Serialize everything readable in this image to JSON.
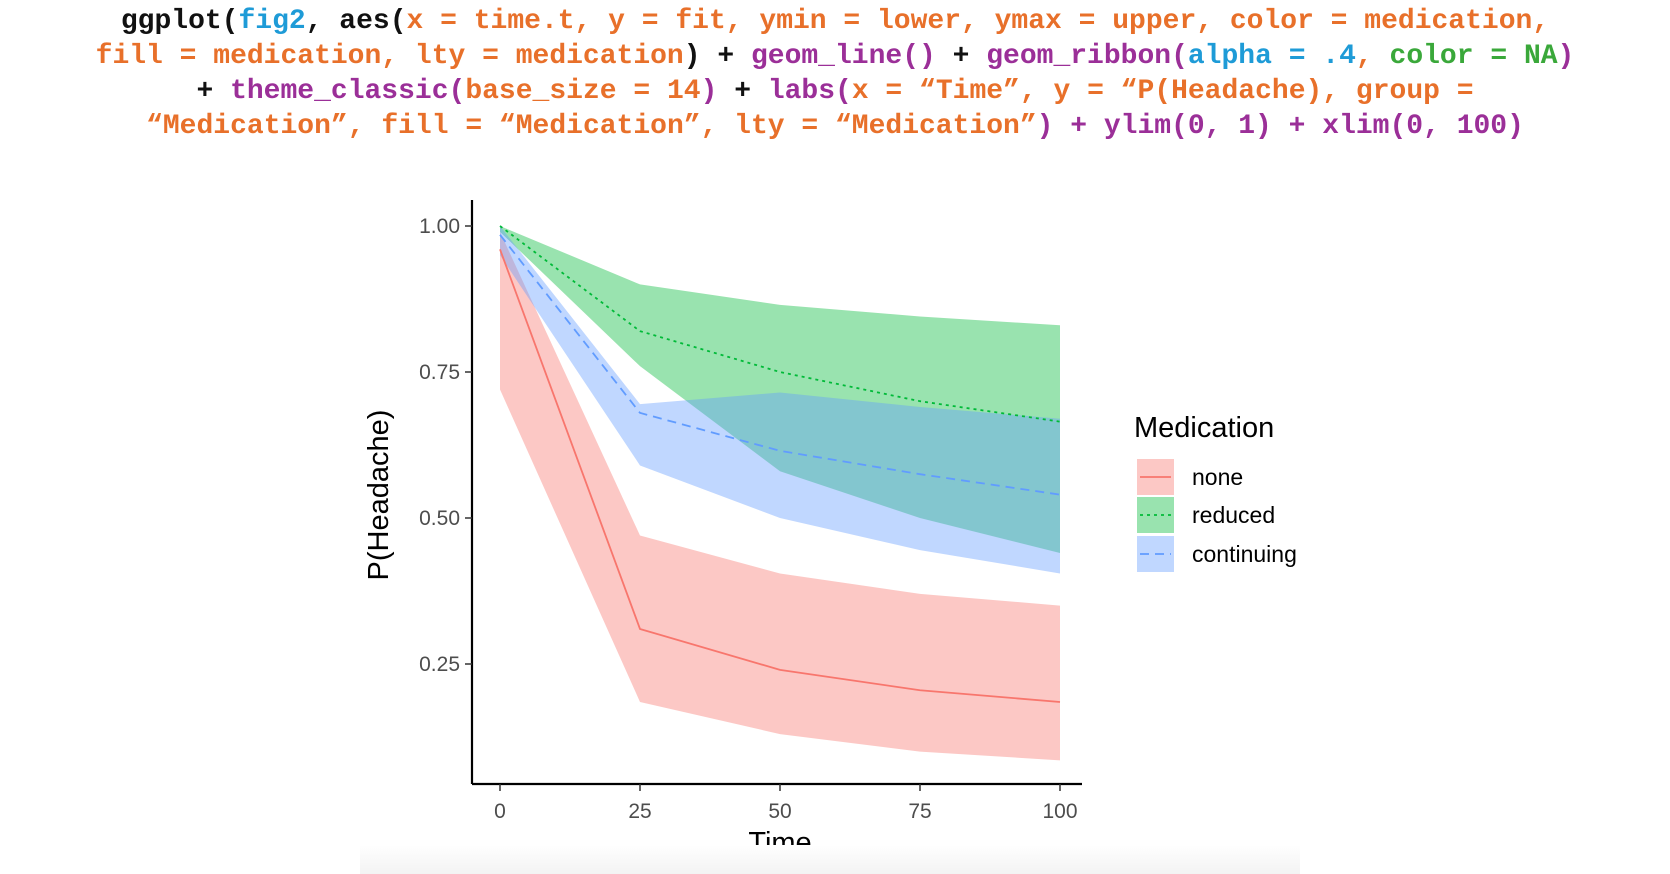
{
  "code": {
    "lines": [
      [
        [
          "black",
          "ggplot("
        ],
        [
          "blue",
          "fig2"
        ],
        [
          "black",
          ", aes("
        ],
        [
          "orange",
          "x = time.t, y = fit, ymin = lower, ymax = upper, color = medication,"
        ]
      ],
      [
        [
          "orange",
          "fill = medication, lty = medication"
        ],
        [
          "black",
          ") + "
        ],
        [
          "purple",
          "geom_line()"
        ],
        [
          "black",
          " + "
        ],
        [
          "purple",
          "geom_ribbon("
        ],
        [
          "blue",
          "alpha = .4"
        ],
        [
          "orange",
          ", "
        ],
        [
          "green",
          "color = NA"
        ],
        [
          "purple",
          ")"
        ]
      ],
      [
        [
          "black",
          "+ "
        ],
        [
          "purple",
          "theme_classic("
        ],
        [
          "orange",
          "base_size = 14"
        ],
        [
          "purple",
          ")"
        ],
        [
          "black",
          " + "
        ],
        [
          "purple",
          "labs("
        ],
        [
          "orange",
          "x = “Time”, y = “P(Headache), group ="
        ]
      ],
      [
        [
          "orange",
          "“Medication”, fill = “Medication”, lty = “Medication”"
        ],
        [
          "purple",
          ") + ylim(0, 1) + xlim(0, 100)"
        ]
      ]
    ]
  },
  "chart_data": {
    "type": "line",
    "xlabel": "Time",
    "ylabel": "P(Headache)",
    "xlim": [
      0,
      100
    ],
    "ylim": [
      0,
      1
    ],
    "x_ticks": [
      "0",
      "25",
      "50",
      "75",
      "100"
    ],
    "y_ticks": [
      "0.25",
      "0.50",
      "0.75",
      "1.00"
    ],
    "legend": {
      "title": "Medication",
      "placement": "right"
    },
    "series": [
      {
        "name": "none",
        "color": "#f8766d",
        "fill": "#fbb8b4",
        "linetype": "solid",
        "x": [
          0,
          25,
          50,
          75,
          100
        ],
        "fit": [
          0.96,
          0.31,
          0.24,
          0.205,
          0.185
        ],
        "lower": [
          0.72,
          0.185,
          0.13,
          0.1,
          0.085
        ],
        "upper": [
          0.99,
          0.47,
          0.405,
          0.37,
          0.35
        ]
      },
      {
        "name": "reduced",
        "color": "#00ba38",
        "fill": "#99d89f",
        "linetype": "dotted",
        "x": [
          0,
          25,
          50,
          75,
          100
        ],
        "fit": [
          1.0,
          0.82,
          0.75,
          0.7,
          0.665
        ],
        "lower": [
          0.99,
          0.76,
          0.58,
          0.5,
          0.44
        ],
        "upper": [
          1.0,
          0.9,
          0.865,
          0.845,
          0.83
        ]
      },
      {
        "name": "continuing",
        "color": "#619cff",
        "fill": "#b6ccfb",
        "linetype": "dashed",
        "x": [
          0,
          25,
          50,
          75,
          100
        ],
        "fit": [
          0.985,
          0.68,
          0.615,
          0.575,
          0.54
        ],
        "lower": [
          0.95,
          0.59,
          0.5,
          0.445,
          0.405
        ],
        "upper": [
          1.0,
          0.695,
          0.715,
          0.69,
          0.67
        ]
      }
    ]
  }
}
